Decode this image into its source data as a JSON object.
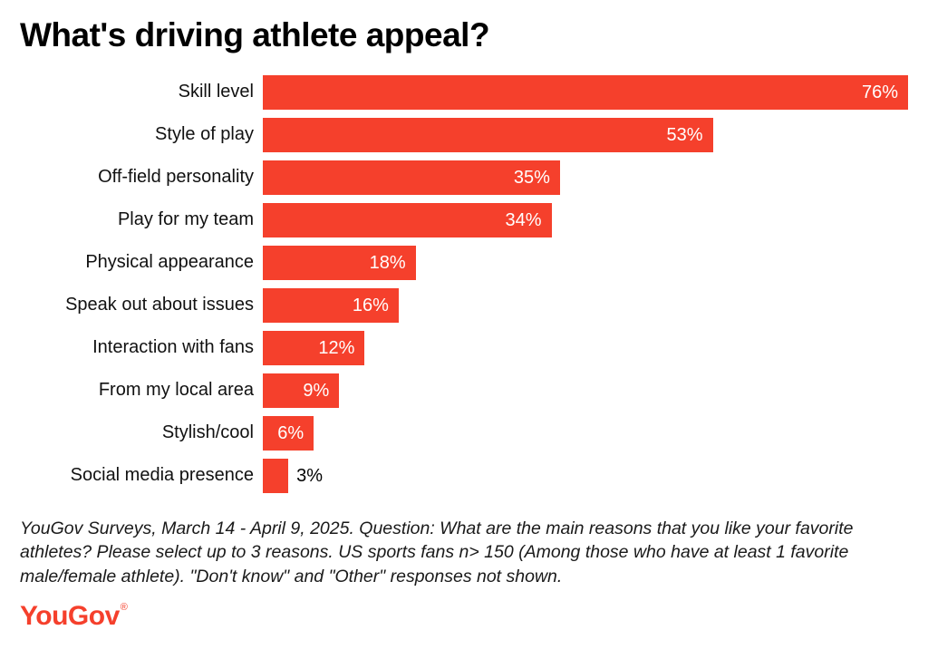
{
  "title": "What's driving athlete appeal?",
  "footnote": "YouGov Surveys, March 14 - April 9, 2025. Question: What are the main reasons that you like your favorite athletes? Please select up to 3 reasons. US sports fans n> 150 (Among those who have at least 1 favorite male/female athlete). \"Don't know\" and \"Other\" responses not shown.",
  "logo": {
    "text": "YouGov",
    "registered": "®"
  },
  "colors": {
    "bar": "#f5402c",
    "value_inside": "#ffffff",
    "value_outside": "#000000",
    "title": "#000000"
  },
  "chart_data": {
    "type": "bar",
    "orientation": "horizontal",
    "title": "What's driving athlete appeal?",
    "categories": [
      "Skill level",
      "Style of play",
      "Off-field personality",
      "Play for my team",
      "Physical appearance",
      "Speak out about issues",
      "Interaction with fans",
      "From my local area",
      "Stylish/cool",
      "Social media presence"
    ],
    "values": [
      76,
      53,
      35,
      34,
      18,
      16,
      12,
      9,
      6,
      3
    ],
    "value_suffix": "%",
    "xlim": [
      0,
      76
    ],
    "grid": false,
    "legend": "none",
    "value_label_placement": "inside-end, outside-end when bar too short"
  }
}
